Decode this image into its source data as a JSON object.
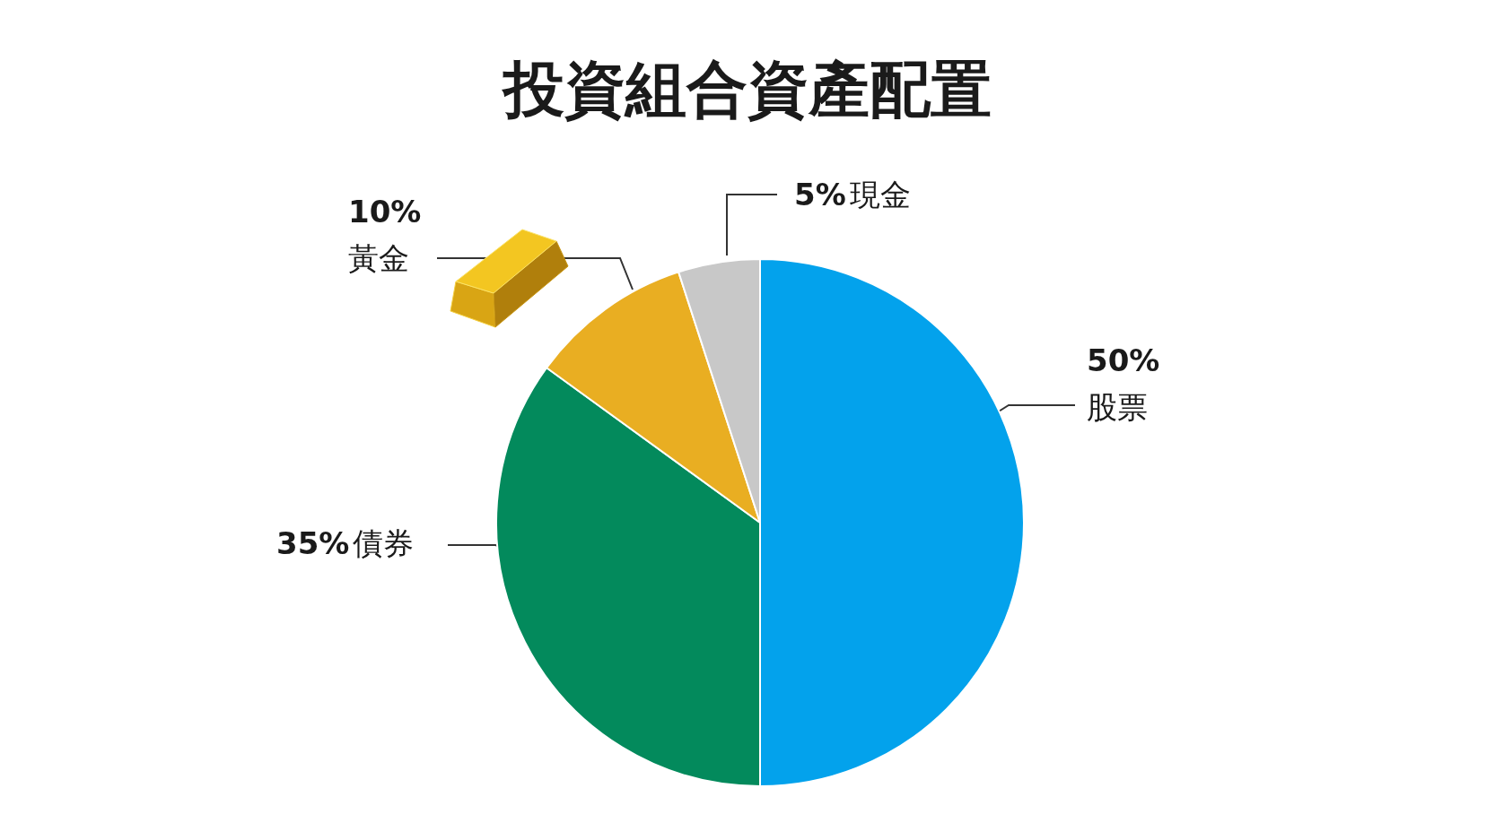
{
  "chart_data": {
    "type": "pie",
    "title": "投資組合資產配置",
    "categories": [
      "股票",
      "債券",
      "黃金",
      "現金"
    ],
    "values": [
      50,
      35,
      10,
      5
    ],
    "value_labels": [
      "50%",
      "35%",
      "10%",
      "5%"
    ],
    "colors": [
      "#03a2ec",
      "#038a5c",
      "#e9ae22",
      "#c8c8c8"
    ]
  }
}
